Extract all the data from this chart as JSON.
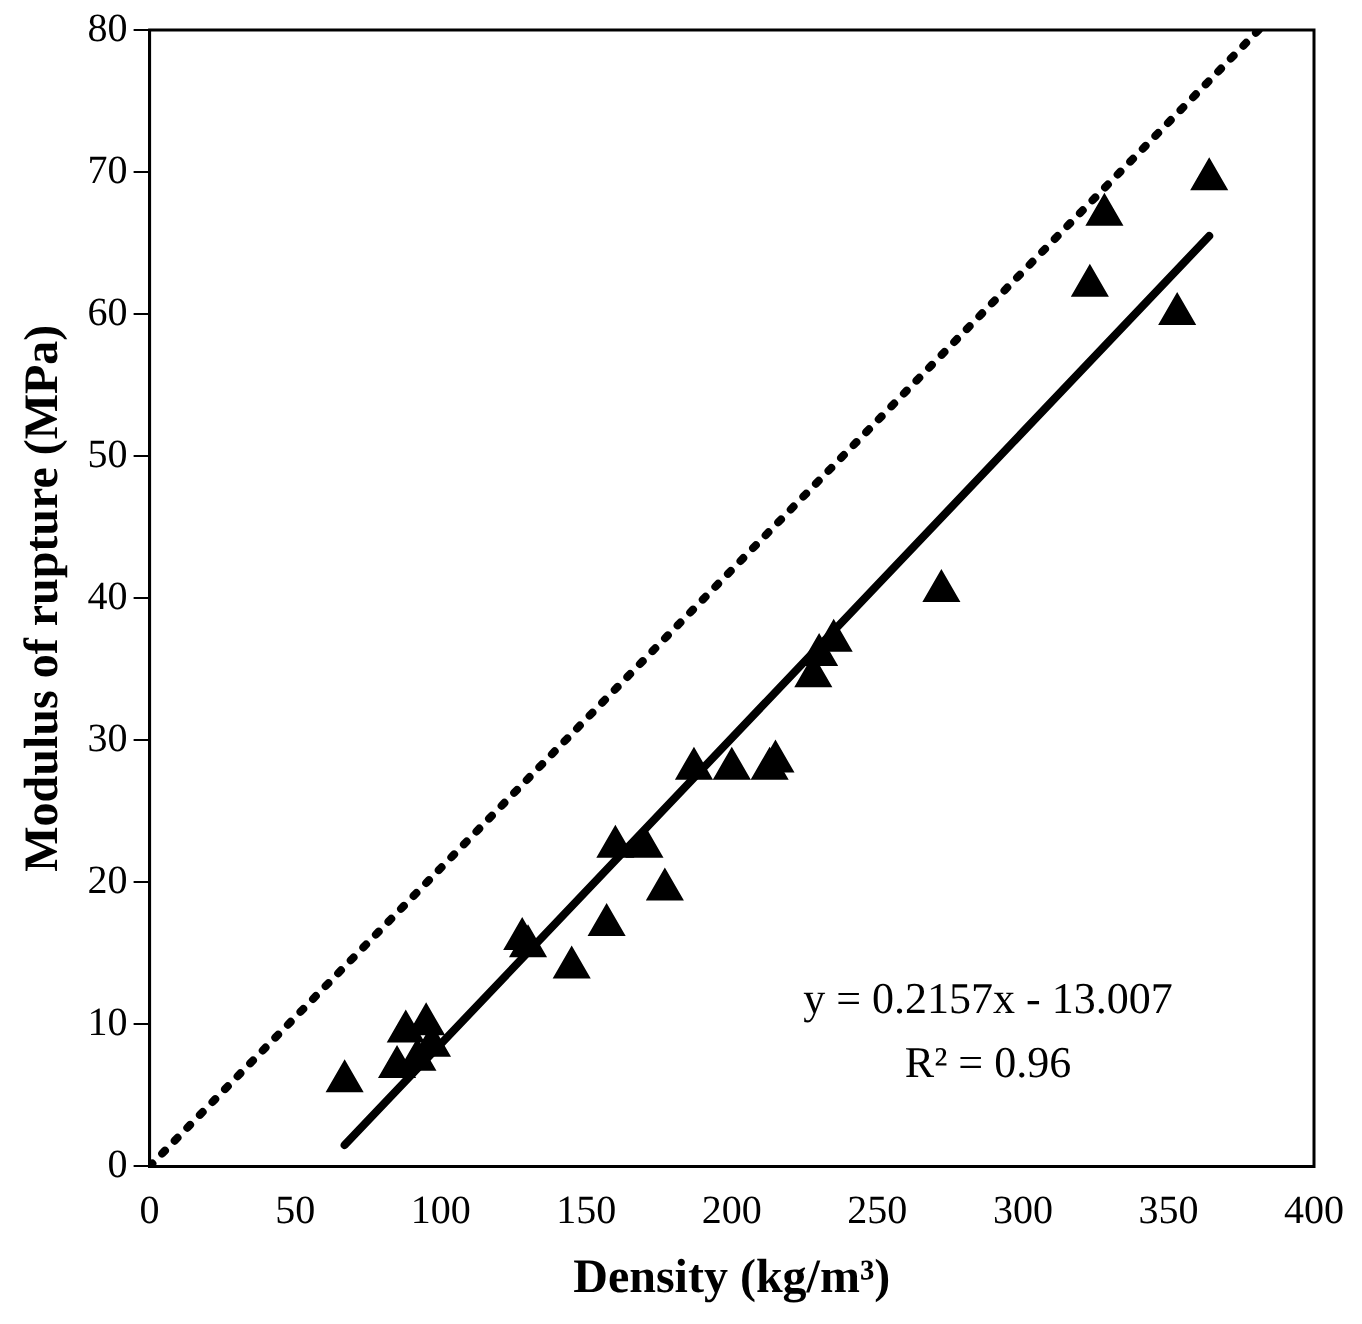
{
  "chart_data": {
    "type": "scatter",
    "xlabel": "Density (kg/m³)",
    "ylabel": "Modulus of rupture (MPa)",
    "xlim": [
      0,
      400
    ],
    "xticks": [
      0,
      50,
      100,
      150,
      200,
      250,
      300,
      350,
      400
    ],
    "ylim": [
      0,
      80
    ],
    "yticks": [
      0,
      10,
      20,
      30,
      40,
      50,
      60,
      70,
      80
    ],
    "grid": false,
    "legend": false,
    "marker": "triangle",
    "series": [
      {
        "color": "#000000",
        "x": [
          67,
          85,
          88,
          92,
          95,
          97,
          128,
          130,
          145,
          157,
          160,
          170,
          177,
          187,
          200,
          213,
          215,
          228,
          230,
          235,
          272,
          323,
          328,
          353,
          364
        ],
        "values": [
          6,
          7,
          9.5,
          7.5,
          10,
          8.5,
          16,
          15.5,
          14,
          17,
          22.5,
          22.5,
          19.5,
          28,
          28,
          28,
          28.5,
          34.5,
          36,
          37,
          40.5,
          62,
          67,
          60,
          69.5
        ]
      },
      {
        "type": "line",
        "color": "#000000",
        "marker": "none",
        "line_style": "solid",
        "x": [
          67,
          364
        ],
        "values": [
          1.5,
          65.5
        ]
      },
      {
        "type": "line",
        "color": "#000000",
        "marker": "none",
        "line_style": "dotted",
        "x": [
          0,
          381
        ],
        "values": [
          0,
          80
        ]
      }
    ],
    "annotations": [
      "y = 0.2157x - 13.007",
      "R² = 0.96"
    ]
  }
}
